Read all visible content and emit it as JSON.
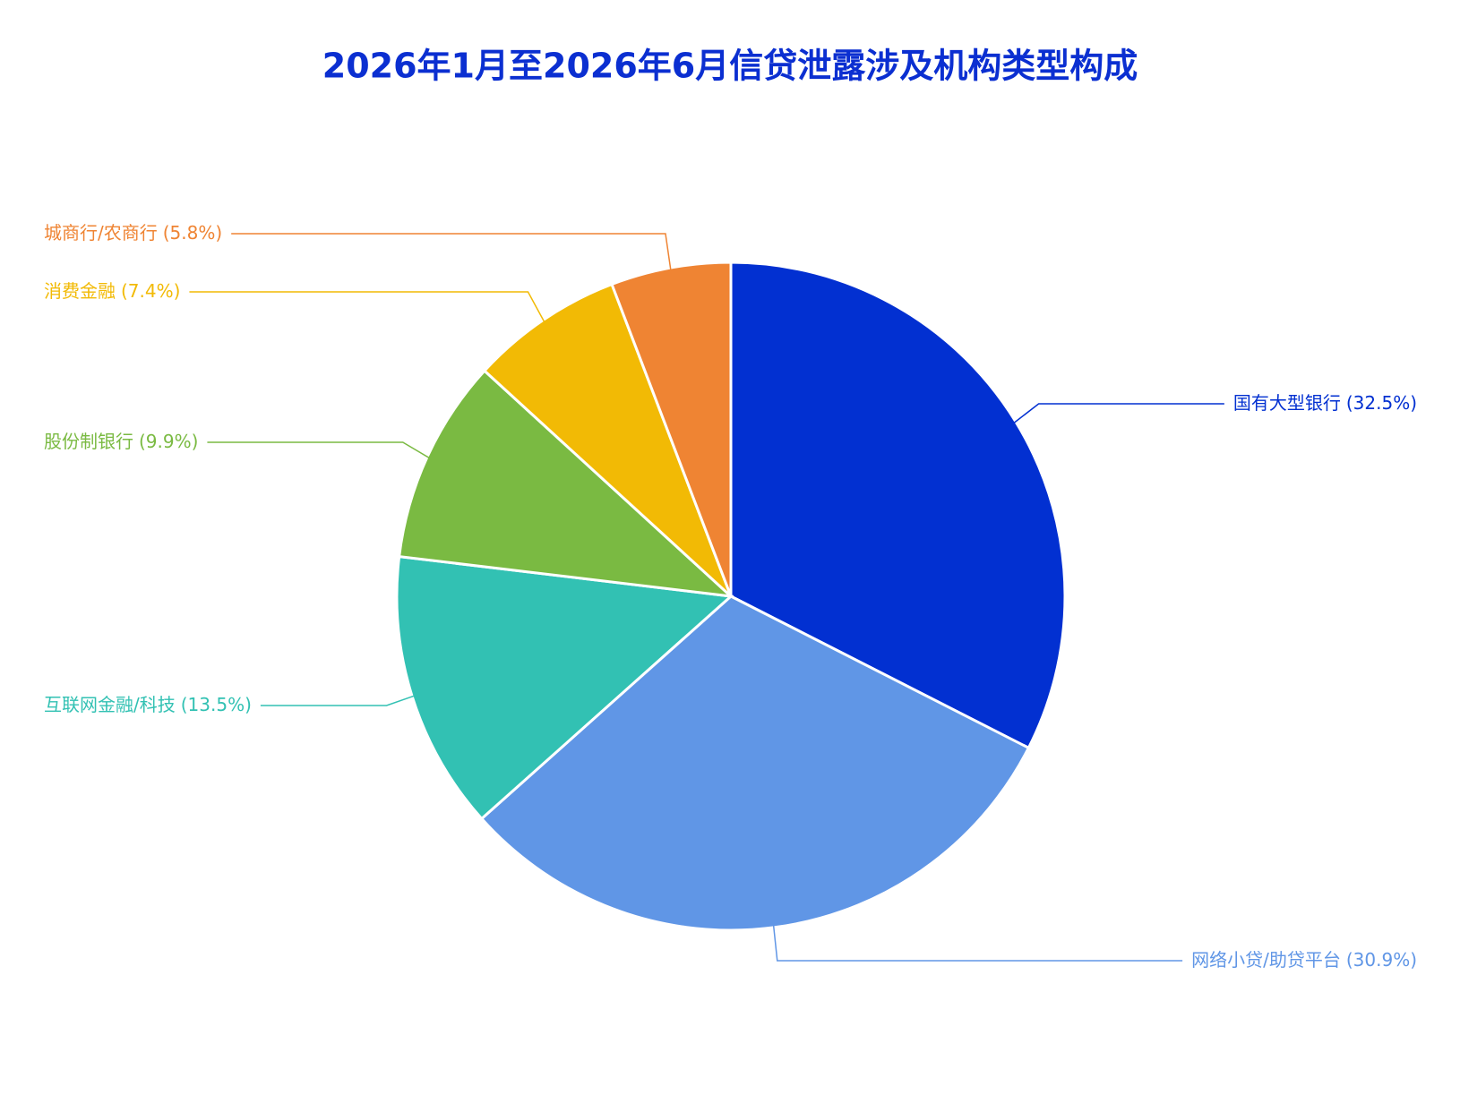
{
  "chart_data": {
    "type": "pie",
    "title": "2026年1月至2026年6月信贷泄露涉及机构类型构成",
    "categories": [
      "国有大型银行",
      "网络小贷/助贷平台",
      "互联网金融/科技",
      "股份制银行",
      "消费金融",
      "城商行/农商行"
    ],
    "values": [
      32.5,
      30.9,
      13.5,
      9.9,
      7.4,
      5.8
    ],
    "value_labels": [
      "(32.5%)",
      "(30.9%)",
      "(13.5%)",
      "(9.9%)",
      "(7.4%)",
      "(5.8%)"
    ],
    "colors": [
      "#0230d1",
      "#6096e6",
      "#32c1b3",
      "#7aba42",
      "#f2ba05",
      "#ef8433"
    ]
  }
}
